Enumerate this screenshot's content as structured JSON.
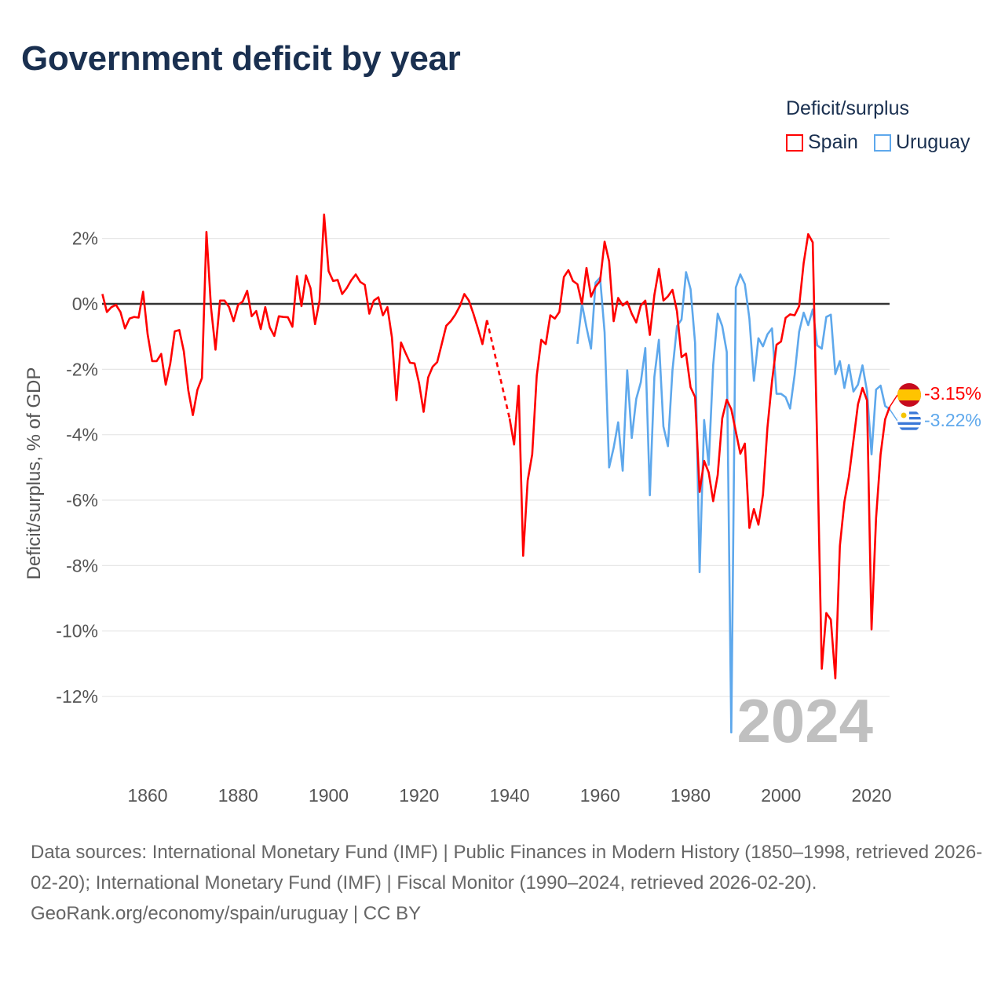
{
  "title": "Government deficit by year",
  "legend": {
    "title": "Deficit/surplus",
    "items": [
      "Spain",
      "Uruguay"
    ]
  },
  "year_label": "2024",
  "end_labels": {
    "spain": "-3.15%",
    "uruguay": "-3.22%"
  },
  "footer": {
    "sources": "Data sources: International Monetary Fund (IMF) | Public Finances in Modern History (1850–1998, retrieved 2026-02-20); International Monetary Fund (IMF) | Fiscal Monitor (1990–2024, retrieved 2026-02-20).",
    "credit": "GeoRank.org/economy/spain/uruguay | CC BY"
  },
  "colors": {
    "spain": "#ff0000",
    "uruguay": "#5ea8ec",
    "title": "#1a3050",
    "year": "#c0c0c0"
  },
  "chart_data": {
    "type": "line",
    "title": "Government deficit by year",
    "xlabel": "",
    "ylabel": "Deficit/surplus, % of GDP",
    "xlim": [
      1850,
      2024
    ],
    "ylim": [
      -13.5,
      2.8
    ],
    "xticks": [
      1860,
      1880,
      1900,
      1920,
      1940,
      1960,
      1980,
      2000,
      2020
    ],
    "xtick_labels": [
      "1860",
      "1880",
      "1900",
      "1920",
      "1940",
      "1960",
      "1980",
      "2000",
      "2020"
    ],
    "yticks": [
      2,
      0,
      -2,
      -4,
      -6,
      -8,
      -10,
      -12
    ],
    "ytick_labels": [
      "2%",
      "0%",
      "-2%",
      "-4%",
      "-6%",
      "-8%",
      "-10%",
      "-12%"
    ],
    "grid": true,
    "legend_position": "top-right",
    "series": [
      {
        "name": "Spain",
        "start_year": 1850,
        "values": [
          0.3,
          -0.25,
          -0.1,
          -0.03,
          -0.25,
          -0.75,
          -0.45,
          -0.4,
          -0.42,
          0.37,
          -0.93,
          -1.75,
          -1.75,
          -1.53,
          -2.47,
          -1.83,
          -0.84,
          -0.8,
          -1.45,
          -2.65,
          -3.4,
          -2.63,
          -2.27,
          2.2,
          -0.1,
          -1.4,
          0.1,
          0.1,
          -0.1,
          -0.53,
          -0.03,
          0.07,
          0.4,
          -0.38,
          -0.22,
          -0.77,
          -0.1,
          -0.72,
          -0.98,
          -0.38,
          -0.4,
          -0.41,
          -0.7,
          0.85,
          -0.07,
          0.87,
          0.48,
          -0.62,
          0.1,
          2.73,
          1.0,
          0.7,
          0.73,
          0.3,
          0.48,
          0.72,
          0.9,
          0.67,
          0.58,
          -0.3,
          0.1,
          0.2,
          -0.35,
          -0.1,
          -1.03,
          -2.95,
          -1.18,
          -1.5,
          -1.8,
          -1.82,
          -2.43,
          -3.3,
          -2.25,
          -1.92,
          -1.78,
          -1.23,
          -0.67,
          -0.53,
          -0.33,
          -0.07,
          0.3,
          0.1,
          -0.3,
          -0.75,
          -1.23,
          -0.5,
          null,
          null,
          null,
          null,
          -3.5,
          -4.3,
          -2.5,
          -7.7,
          -5.4,
          -4.6,
          -2.2,
          -1.1,
          -1.23,
          -0.35,
          -0.45,
          -0.25,
          0.82,
          1.03,
          0.7,
          0.6,
          0,
          1.1,
          0.22,
          0.53,
          0.7,
          1.9,
          1.3,
          -0.53,
          0.18,
          -0.05,
          0.07,
          -0.3,
          -0.57,
          -0.05,
          0.1,
          -0.95,
          0.27,
          1.07,
          0.1,
          0.23,
          0.43,
          -0.23,
          -1.63,
          -1.52,
          -2.55,
          -2.85,
          -5.75,
          -4.8,
          -5.15,
          -6.03,
          -5.23,
          -3.5,
          -2.93,
          -3.22,
          -3.9,
          -4.58,
          -4.27,
          -6.85,
          -6.27,
          -6.75,
          -5.83,
          -3.77,
          -2.37,
          -1.25,
          -1.15,
          -0.43,
          -0.32,
          -0.35,
          -0.07,
          1.25,
          2.13,
          1.88,
          -4.4,
          -11.15,
          -9.45,
          -9.65,
          -11.45,
          -7.4,
          -6.05,
          -5.28,
          -4.18,
          -3.07,
          -2.57,
          -2.95,
          -9.95,
          -6.55,
          -4.6,
          -3.53,
          -3.15
        ]
      },
      {
        "name": "Uruguay",
        "start_year": 1955,
        "values": [
          -1.22,
          0,
          -0.72,
          -1.37,
          0.65,
          0.8,
          -0.87,
          -5.0,
          -4.4,
          -3.62,
          -5.1,
          -2.03,
          -4.1,
          -2.9,
          -2.4,
          -1.35,
          -5.85,
          -2.23,
          -1.1,
          -3.75,
          -4.35,
          -2.03,
          -0.68,
          -0.48,
          0.97,
          0.45,
          -1.2,
          -8.2,
          -3.55,
          -4.92,
          -1.87,
          -0.3,
          -0.68,
          -1.47,
          -13.1,
          0.5,
          0.9,
          0.6,
          -0.45,
          -2.35,
          -1.05,
          -1.3,
          -0.93,
          -0.75,
          -2.75,
          -2.75,
          -2.85,
          -3.2,
          -2.17,
          -0.85,
          -0.27,
          -0.65,
          -0.17,
          -1.27,
          -1.37,
          -0.4,
          -0.33,
          -2.15,
          -1.75,
          -2.57,
          -1.87,
          -2.68,
          -2.47,
          -1.88,
          -2.67,
          -4.6,
          -2.62,
          -2.5,
          -3.12,
          -3.22
        ]
      }
    ]
  }
}
